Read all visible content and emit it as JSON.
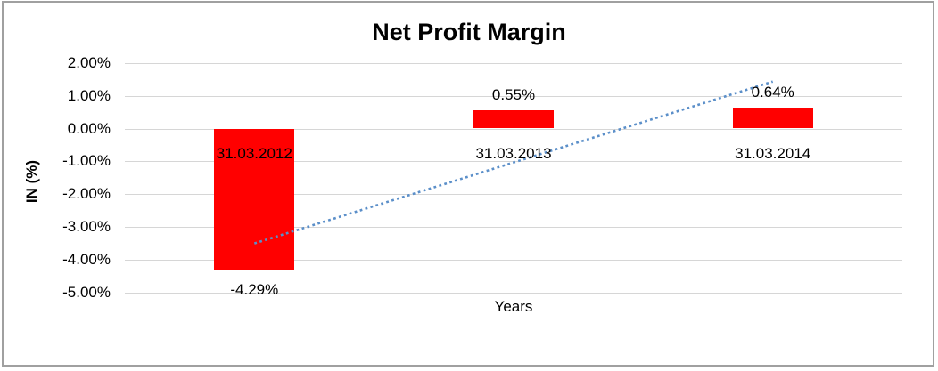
{
  "chart_data": {
    "type": "bar",
    "title": "Net Profit Margin",
    "xlabel": "Years",
    "ylabel": "IN (%)",
    "categories": [
      "31.03.2012",
      "31.03.2013",
      "31.03.2014"
    ],
    "values": [
      -4.29,
      0.55,
      0.64
    ],
    "data_labels": [
      "-4.29%",
      "0.55%",
      "0.64%"
    ],
    "ylim": [
      -5,
      2
    ],
    "ytick_values": [
      2,
      1,
      0,
      -1,
      -2,
      -3,
      -4,
      -5
    ],
    "ytick_labels": [
      "2.00%",
      "1.00%",
      "0.00%",
      "-1.00%",
      "-2.00%",
      "-3.00%",
      "-4.00%",
      "-5.00%"
    ],
    "grid": true,
    "legend": false,
    "trendline": {
      "type": "linear",
      "style": "dotted",
      "points": [
        {
          "x_index": 0,
          "value": -3.5
        },
        {
          "x_index": 2,
          "value": 1.43
        }
      ]
    }
  },
  "colors": {
    "bar": "#ff0000",
    "trendline": "#5b8fc9",
    "gridline": "#d6d6d6",
    "chart_border": "#a0a0a0",
    "text": "#000000",
    "background": "#ffffff"
  }
}
